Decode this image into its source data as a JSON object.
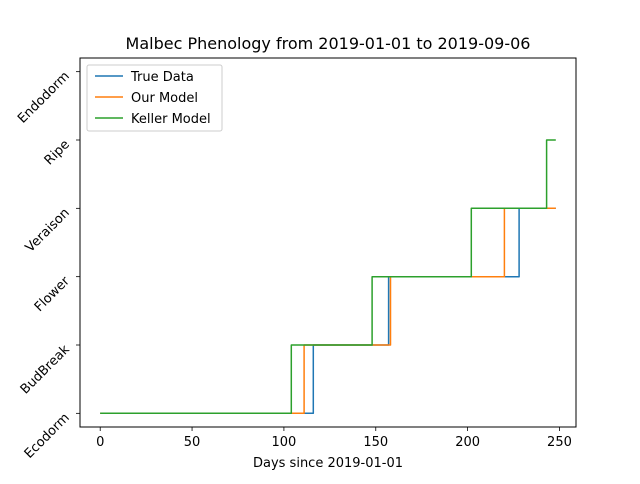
{
  "chart_data": {
    "type": "line",
    "title": "Malbec Phenology from 2019-01-01 to 2019-09-06",
    "xlabel": "Days since 2019-01-01",
    "ylabel": "",
    "xlim": [
      -11,
      259
    ],
    "ylim": [
      -0.2,
      5.2
    ],
    "xticks": [
      0,
      50,
      100,
      150,
      200,
      250
    ],
    "yticks": [
      "Ecodorm",
      "BudBreak",
      "Flower",
      "Veraison",
      "Ripe",
      "Endodorm"
    ],
    "legend_position": "top-left",
    "grid": false,
    "series": [
      {
        "name": "True Data",
        "color": "#1f77b4",
        "points": [
          [
            0,
            0
          ],
          [
            116,
            0
          ],
          [
            116,
            1
          ],
          [
            157,
            1
          ],
          [
            157,
            2
          ],
          [
            228,
            2
          ],
          [
            228,
            3
          ],
          [
            248,
            3
          ]
        ]
      },
      {
        "name": "Our Model",
        "color": "#ff7f0e",
        "points": [
          [
            0,
            0
          ],
          [
            111,
            0
          ],
          [
            111,
            1
          ],
          [
            158,
            1
          ],
          [
            158,
            2
          ],
          [
            220,
            2
          ],
          [
            220,
            3
          ],
          [
            248,
            3
          ]
        ]
      },
      {
        "name": "Keller Model",
        "color": "#2ca02c",
        "points": [
          [
            0,
            0
          ],
          [
            104,
            0
          ],
          [
            104,
            1
          ],
          [
            148,
            1
          ],
          [
            148,
            2
          ],
          [
            202,
            2
          ],
          [
            202,
            3
          ],
          [
            243,
            3
          ],
          [
            243,
            4
          ],
          [
            248,
            4
          ]
        ]
      }
    ]
  }
}
